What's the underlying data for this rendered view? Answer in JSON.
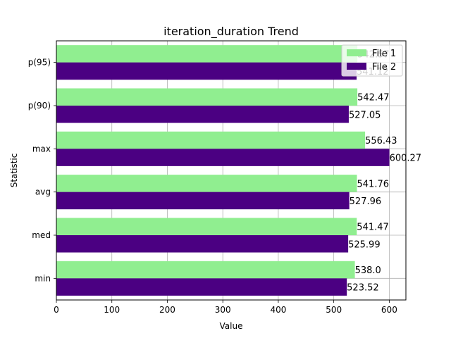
{
  "chart_data": {
    "type": "bar",
    "orientation": "horizontal",
    "title": "iteration_duration Trend",
    "xlabel": "Value",
    "ylabel": "Statistic",
    "categories": [
      "min",
      "med",
      "avg",
      "max",
      "p(90)",
      "p(95)"
    ],
    "series": [
      {
        "name": "File 1",
        "color": "#90ee90",
        "values": [
          538.0,
          541.47,
          541.76,
          556.43,
          542.47,
          542.57
        ]
      },
      {
        "name": "File 2",
        "color": "#4b0082",
        "values": [
          523.52,
          525.99,
          527.96,
          600.27,
          527.05,
          541.12
        ]
      }
    ],
    "value_labels": [
      [
        "538.0",
        "541.47",
        "541.76",
        "556.43",
        "542.47",
        "542.57"
      ],
      [
        "523.52",
        "525.99",
        "527.96",
        "600.27",
        "527.05",
        "541.12"
      ]
    ],
    "xlim": [
      0,
      630
    ],
    "xticks": [
      0,
      100,
      200,
      300,
      400,
      500,
      600
    ],
    "grid": true,
    "legend": "upper-right"
  }
}
